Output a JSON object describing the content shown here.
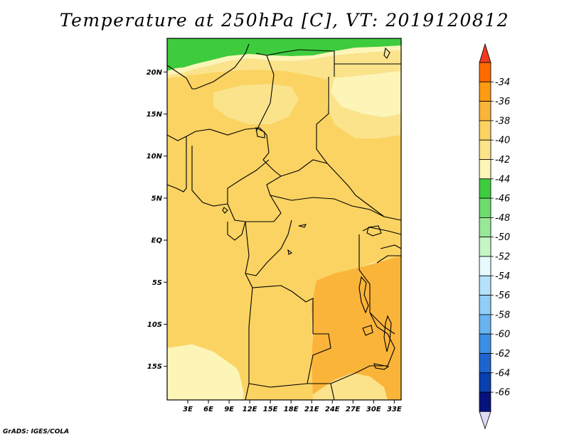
{
  "title": "Temperature at 250hPa [C], VT: 2019120812",
  "footer": "GrADS: IGES/COLA",
  "map": {
    "lon_range": [
      0,
      34
    ],
    "lat_range": [
      -19,
      24
    ],
    "lat_ticks": [
      {
        "label": "20N",
        "value": 20
      },
      {
        "label": "15N",
        "value": 15
      },
      {
        "label": "10N",
        "value": 10
      },
      {
        "label": "5N",
        "value": 5
      },
      {
        "label": "EQ",
        "value": 0
      },
      {
        "label": "5S",
        "value": -5
      },
      {
        "label": "10S",
        "value": -10
      },
      {
        "label": "15S",
        "value": -15
      }
    ],
    "lon_ticks": [
      {
        "label": "3E",
        "value": 3
      },
      {
        "label": "6E",
        "value": 6
      },
      {
        "label": "9E",
        "value": 9
      },
      {
        "label": "12E",
        "value": 12
      },
      {
        "label": "15E",
        "value": 15
      },
      {
        "label": "18E",
        "value": 18
      },
      {
        "label": "21E",
        "value": 21
      },
      {
        "label": "24E",
        "value": 24
      },
      {
        "label": "27E",
        "value": 27
      },
      {
        "label": "30E",
        "value": 30
      },
      {
        "label": "33E",
        "value": 33
      }
    ]
  },
  "colorbar": {
    "top_arrow_color": "#f03a1e",
    "bottom_arrow_color": "#dcdcf4",
    "levels": [
      {
        "label": "-34",
        "color": "#ff6a00"
      },
      {
        "label": "-36",
        "color": "#ff9a14"
      },
      {
        "label": "-38",
        "color": "#fbb43a"
      },
      {
        "label": "-40",
        "color": "#fad362"
      },
      {
        "label": "-42",
        "color": "#fbe38c"
      },
      {
        "label": "-44",
        "color": "#fdf5b8"
      },
      {
        "label": "-46",
        "color": "#3ecb3e"
      },
      {
        "label": "-48",
        "color": "#6fdb6f"
      },
      {
        "label": "-50",
        "color": "#98e898"
      },
      {
        "label": "-52",
        "color": "#c6f5c6"
      },
      {
        "label": "-54",
        "color": "#e6fafd"
      },
      {
        "label": "-56",
        "color": "#b5e1fb"
      },
      {
        "label": "-58",
        "color": "#91cdf6"
      },
      {
        "label": "-60",
        "color": "#69b3ef"
      },
      {
        "label": "-62",
        "color": "#3c8fe4"
      },
      {
        "label": "-64",
        "color": "#1e64cf"
      },
      {
        "label": "-66",
        "color": "#0a3faf"
      },
      {
        "label": "",
        "color": "#06137a"
      }
    ]
  }
}
